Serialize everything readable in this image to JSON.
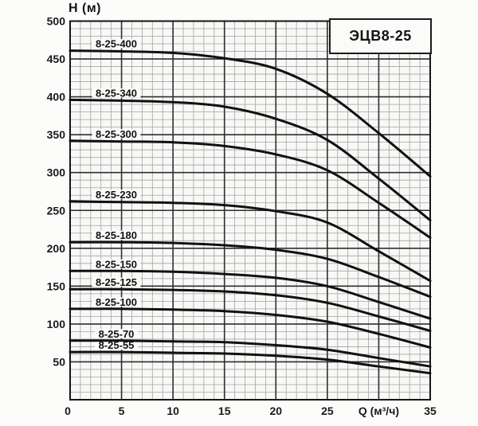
{
  "title_box": {
    "label": "ЭЦВ8-25"
  },
  "chart_data": {
    "type": "line",
    "title": "ЭЦВ8-25",
    "xlabel": "Q (м³/ч)",
    "ylabel": "Н (м)",
    "xlim": [
      0,
      35
    ],
    "ylim": [
      0,
      500
    ],
    "x_major_step": 5,
    "x_minor_step": 1,
    "y_major_step": 50,
    "y_minor_step": 10,
    "grid": "fine graph paper, minor and major lines",
    "legend_position": "labels above each curve inside plot",
    "x": [
      0,
      5,
      10,
      15,
      20,
      25,
      30,
      35
    ],
    "x_tick_labels": [
      "0",
      "5",
      "10",
      "15",
      "20",
      "25",
      "Q (м³/ч)",
      "35"
    ],
    "y_tick_labels": [
      "50",
      "100",
      "150",
      "200",
      "250",
      "300",
      "350",
      "400",
      "450",
      "500"
    ],
    "series": [
      {
        "name": "8-25-400",
        "values": [
          461,
          460,
          458,
          451,
          437,
          404,
          352,
          295
        ]
      },
      {
        "name": "8-25-340",
        "values": [
          396,
          395,
          393,
          387,
          371,
          343,
          292,
          237
        ]
      },
      {
        "name": "8-25-300",
        "values": [
          342,
          341,
          340,
          335,
          324,
          303,
          260,
          214
        ]
      },
      {
        "name": "8-25-230",
        "values": [
          262,
          261,
          260,
          257,
          249,
          234,
          196,
          157
        ]
      },
      {
        "name": "8-25-180",
        "values": [
          208,
          208,
          207,
          204,
          198,
          186,
          162,
          136
        ]
      },
      {
        "name": "8-25-150",
        "values": [
          170,
          170,
          169,
          166,
          161,
          150,
          129,
          107
        ]
      },
      {
        "name": "8-25-125",
        "values": [
          146,
          146,
          145,
          143,
          138,
          128,
          110,
          91
        ]
      },
      {
        "name": "8-25-100",
        "values": [
          120,
          120,
          119,
          117,
          112,
          103,
          87,
          69
        ]
      },
      {
        "name": "8-25-70",
        "values": [
          78,
          78,
          77,
          76,
          72,
          66,
          55,
          44
        ]
      },
      {
        "name": "8-25-55",
        "values": [
          63,
          63,
          62,
          61,
          58,
          53,
          44,
          35
        ]
      }
    ],
    "colors": {
      "curve": "#111111",
      "grid_minor": "#a3a3a3",
      "grid_major": "#2e2e2e",
      "plot_border": "#161616",
      "background": "#f8f8f6",
      "text": "#1a1a1a",
      "label_background": "#fbfbf9"
    }
  }
}
